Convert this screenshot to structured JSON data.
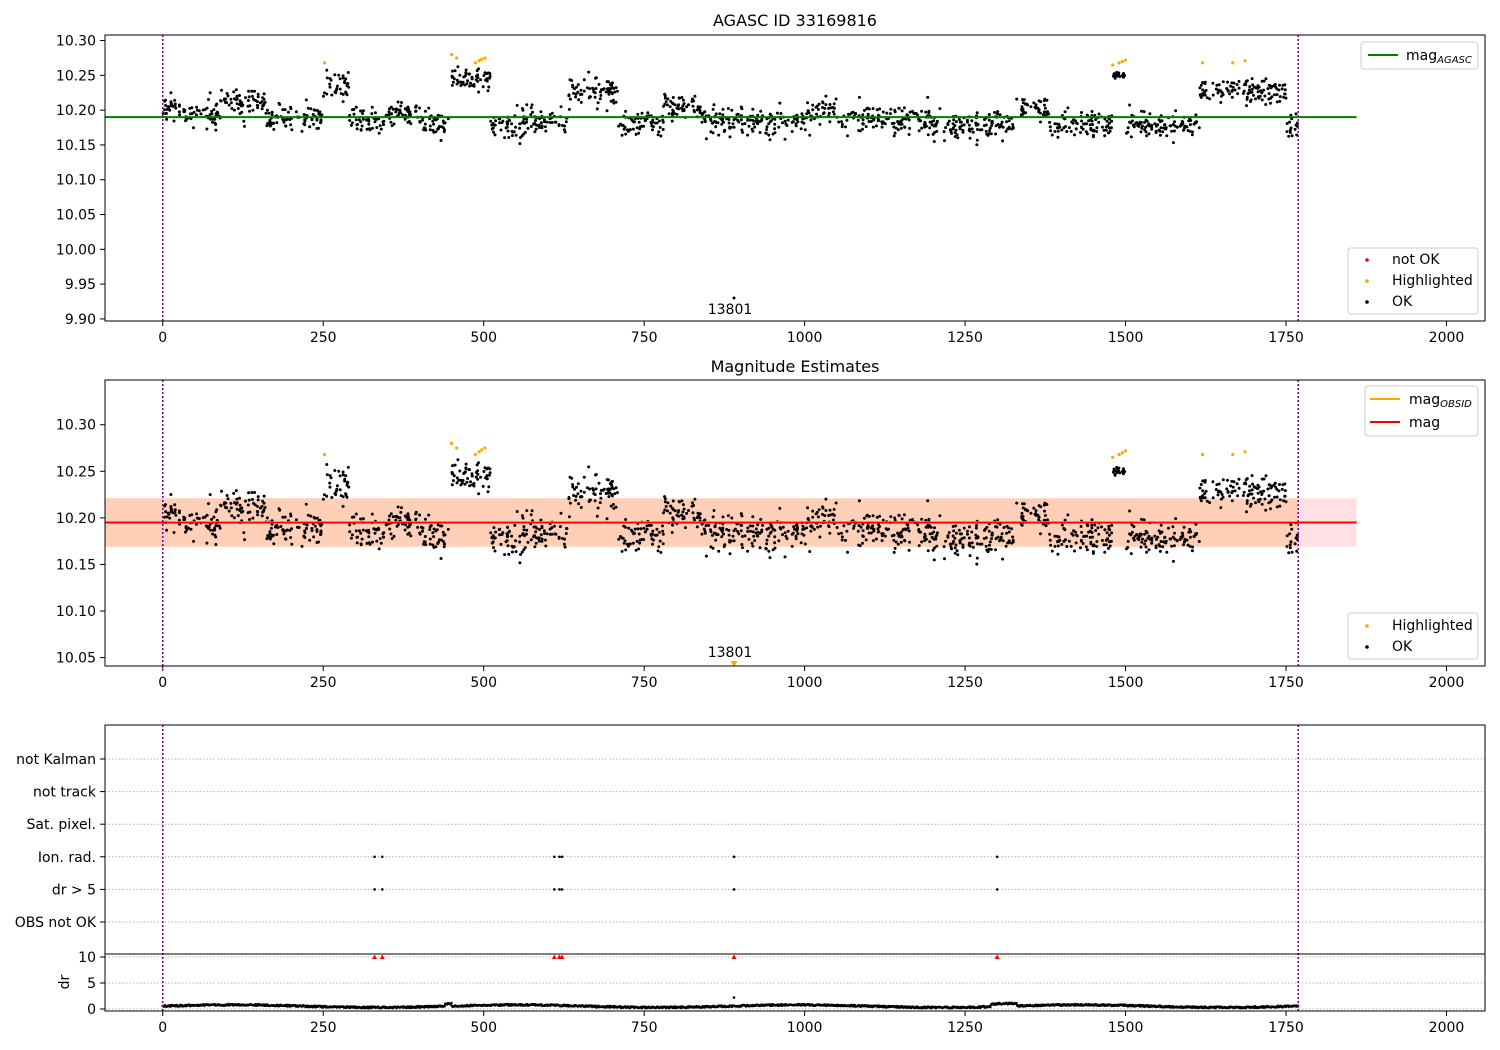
{
  "chart_data": [
    {
      "type": "scatter",
      "title": "AGASC ID 33169816",
      "xlabel": "",
      "ylabel": "",
      "xlim": [
        -90,
        2060
      ],
      "ylim": [
        9.897,
        10.308
      ],
      "xticks": [
        0,
        250,
        500,
        750,
        1000,
        1250,
        1500,
        1750,
        2000
      ],
      "yticks": [
        9.9,
        9.95,
        10.0,
        10.05,
        10.1,
        10.15,
        10.2,
        10.25,
        10.3
      ],
      "ytick_labels": [
        "9.90",
        "9.95",
        "10.00",
        "10.05",
        "10.10",
        "10.15",
        "10.20",
        "10.25",
        "10.30"
      ],
      "grid": false,
      "vlines": [
        0,
        1769
      ],
      "mag_agasc": 10.19,
      "mag_line_x": [
        -90,
        1860
      ],
      "legend_line_position": "upper-right",
      "legend_points_position": "lower-right",
      "legend_line": [
        {
          "label": "mag",
          "sub": "AGASC",
          "color": "#008000"
        }
      ],
      "legend_points": [
        {
          "label": "not OK",
          "color": "#ff0000"
        },
        {
          "label": "Highlighted",
          "color": "#ffa500"
        },
        {
          "label": "OK",
          "color": "#000000"
        }
      ],
      "annotations": [
        {
          "text": "13801",
          "x": 890,
          "y": 9.93
        }
      ],
      "segments": [
        {
          "x": [
            0,
            30
          ],
          "center": 10.203,
          "spread": 0.02
        },
        {
          "x": [
            30,
            90
          ],
          "center": 10.195,
          "spread": 0.022
        },
        {
          "x": [
            90,
            160
          ],
          "center": 10.212,
          "spread": 0.025
        },
        {
          "x": [
            160,
            250
          ],
          "center": 10.19,
          "spread": 0.025
        },
        {
          "x": [
            250,
            290
          ],
          "center": 10.235,
          "spread": 0.025
        },
        {
          "x": [
            290,
            345
          ],
          "center": 10.185,
          "spread": 0.022
        },
        {
          "x": [
            345,
            400
          ],
          "center": 10.197,
          "spread": 0.022
        },
        {
          "x": [
            400,
            445
          ],
          "center": 10.18,
          "spread": 0.02
        },
        {
          "x": [
            445,
            510
          ],
          "center": 10.245,
          "spread": 0.02
        },
        {
          "x": [
            510,
            560
          ],
          "center": 10.178,
          "spread": 0.022
        },
        {
          "x": [
            560,
            630
          ],
          "center": 10.185,
          "spread": 0.022
        },
        {
          "x": [
            630,
            710
          ],
          "center": 10.228,
          "spread": 0.025
        },
        {
          "x": [
            710,
            780
          ],
          "center": 10.18,
          "spread": 0.022
        },
        {
          "x": [
            780,
            840
          ],
          "center": 10.205,
          "spread": 0.025
        },
        {
          "x": [
            840,
            1000
          ],
          "center": 10.185,
          "spread": 0.025
        },
        {
          "x": [
            1000,
            1050
          ],
          "center": 10.195,
          "spread": 0.025
        },
        {
          "x": [
            1050,
            1200
          ],
          "center": 10.187,
          "spread": 0.025
        },
        {
          "x": [
            1200,
            1330
          ],
          "center": 10.178,
          "spread": 0.025
        },
        {
          "x": [
            1330,
            1380
          ],
          "center": 10.205,
          "spread": 0.022
        },
        {
          "x": [
            1380,
            1480
          ],
          "center": 10.178,
          "spread": 0.022
        },
        {
          "x": [
            1480,
            1500
          ],
          "center": 10.25,
          "spread": 0.01
        },
        {
          "x": [
            1500,
            1615
          ],
          "center": 10.18,
          "spread": 0.02
        },
        {
          "x": [
            1615,
            1750
          ],
          "center": 10.228,
          "spread": 0.022
        },
        {
          "x": [
            1750,
            1769
          ],
          "center": 10.175,
          "spread": 0.022
        }
      ],
      "highlighted_points": [
        {
          "x": 450,
          "y": 10.28
        },
        {
          "x": 458,
          "y": 10.275
        },
        {
          "x": 487,
          "y": 10.268
        },
        {
          "x": 493,
          "y": 10.271
        },
        {
          "x": 497,
          "y": 10.273
        },
        {
          "x": 502,
          "y": 10.275
        },
        {
          "x": 252,
          "y": 10.268
        },
        {
          "x": 1480,
          "y": 10.265
        },
        {
          "x": 1490,
          "y": 10.268
        },
        {
          "x": 1495,
          "y": 10.27
        },
        {
          "x": 1500,
          "y": 10.272
        },
        {
          "x": 1620,
          "y": 10.268
        },
        {
          "x": 1667,
          "y": 10.268
        },
        {
          "x": 1686,
          "y": 10.271
        }
      ],
      "special_points": [
        {
          "x": 890,
          "y": 9.93,
          "color": "#000000"
        }
      ]
    },
    {
      "type": "scatter",
      "title": "Magnitude Estimates",
      "xlabel": "",
      "ylabel": "",
      "xlim": [
        -90,
        2060
      ],
      "ylim": [
        10.041,
        10.348
      ],
      "xticks": [
        0,
        250,
        500,
        750,
        1000,
        1250,
        1500,
        1750,
        2000
      ],
      "yticks": [
        10.05,
        10.1,
        10.15,
        10.2,
        10.25,
        10.3
      ],
      "ytick_labels": [
        "10.05",
        "10.10",
        "10.15",
        "10.20",
        "10.25",
        "10.30"
      ],
      "grid": false,
      "vlines": [
        0,
        1769
      ],
      "mag": 10.195,
      "mag_band": [
        10.169,
        10.221
      ],
      "band_x": [
        -90,
        1860
      ],
      "obsid_band_x": [
        0,
        1769
      ],
      "legend_line_position": "upper-right",
      "legend_points_position": "lower-right",
      "legend_line": [
        {
          "label": "mag",
          "sub": "OBSID",
          "color": "#ffa500"
        },
        {
          "label": "mag",
          "sub": "",
          "color": "#ff0000"
        }
      ],
      "legend_points": [
        {
          "label": "Highlighted",
          "color": "#ffa500"
        },
        {
          "label": "OK",
          "color": "#000000"
        }
      ],
      "annotations": [
        {
          "text": "13801",
          "x": 890,
          "y": 10.044
        }
      ],
      "special_points": [
        {
          "x": 890,
          "y": 10.043,
          "color": "#ffa500",
          "marker": "triangle-down"
        }
      ]
    },
    {
      "type": "scatter",
      "title": "",
      "xlabel": "",
      "ylabel": "dr",
      "xlim": [
        -90,
        2060
      ],
      "xticks": [
        0,
        250,
        500,
        750,
        1000,
        1250,
        1500,
        1750,
        2000
      ],
      "flag_rows": [
        "not Kalman",
        "not track",
        "Sat. pixel.",
        "Ion. rad.",
        "dr > 5",
        "OBS not OK"
      ],
      "flag_points": [
        {
          "row": "Ion. rad.",
          "x": [
            330,
            342,
            610,
            618,
            622,
            890,
            1300
          ]
        },
        {
          "row": "dr > 5",
          "x": [
            330,
            342,
            610,
            618,
            622,
            890,
            1300
          ]
        }
      ],
      "dr_yticks": [
        0,
        5,
        10
      ],
      "dr_ylim": [
        -0.6,
        10.6
      ],
      "dr_clipped": [
        330,
        342,
        610,
        618,
        622,
        890,
        1300
      ],
      "dr_special": [
        {
          "x": 890,
          "y": 2.2
        }
      ],
      "vlines": [
        0,
        1769
      ]
    }
  ]
}
